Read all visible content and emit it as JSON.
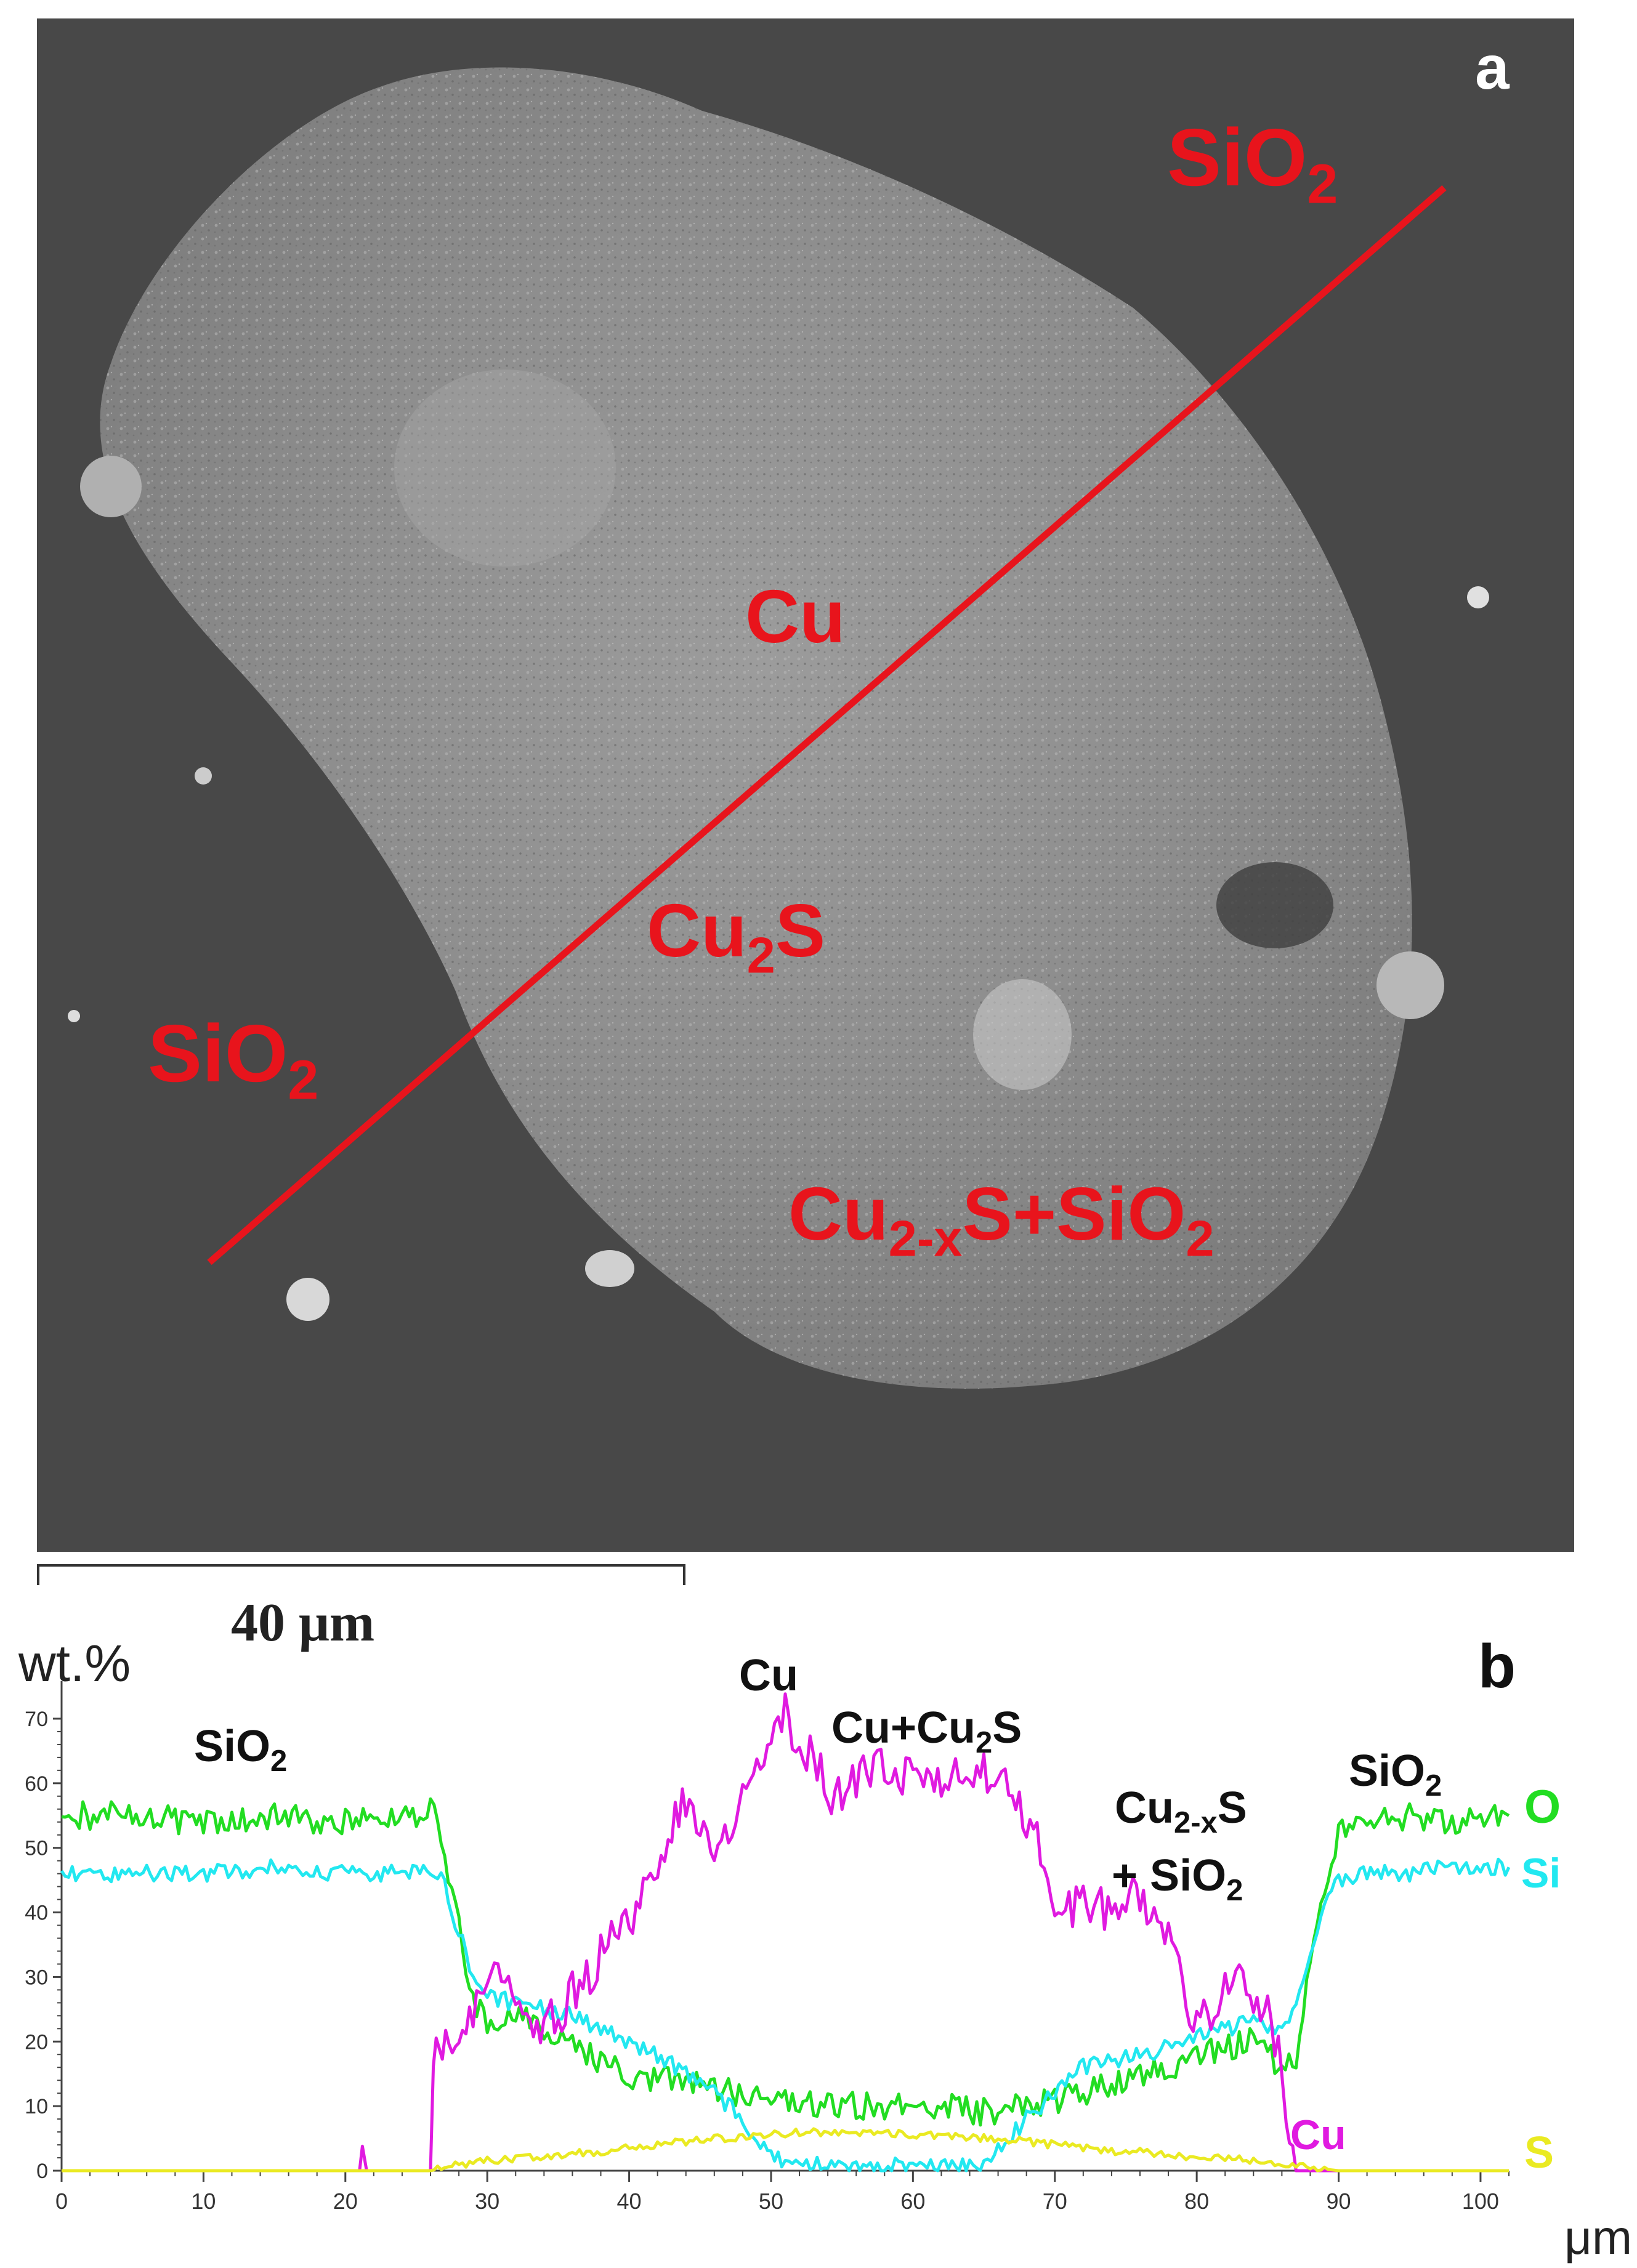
{
  "panel_a": {
    "letter": "a",
    "labels": {
      "sio2_top": "SiO",
      "sio2_top_sub": "2",
      "cu": "Cu",
      "cu2s": "Cu",
      "cu2s_sub": "2",
      "cu2s_tail": "S",
      "sio2_left": "SiO",
      "sio2_left_sub": "2",
      "mix_a": "Cu",
      "mix_a_sub": "2-x",
      "mix_a_mid": "S+SiO",
      "mix_a_sub2": "2"
    },
    "colors": {
      "label": "#e8141c",
      "line": "#e8141c",
      "background": "#484848",
      "particle": "#9a9a9a"
    },
    "scale_bar": "40 μm"
  },
  "chart_data": {
    "type": "line",
    "panel_letter": "b",
    "ylabel": "wt.%",
    "xlabel": "μm",
    "xlim": [
      0,
      102
    ],
    "ylim": [
      0,
      72
    ],
    "x_ticks": [
      "0",
      "10",
      "20",
      "30",
      "40",
      "50",
      "60",
      "70",
      "80",
      "90",
      "100"
    ],
    "y_ticks": [
      "0",
      "10",
      "20",
      "30",
      "40",
      "50",
      "60",
      "70"
    ],
    "grid": false,
    "series": [
      {
        "name": "O",
        "color": "#22dd22",
        "points": [
          [
            0,
            55
          ],
          [
            5,
            55
          ],
          [
            10,
            54
          ],
          [
            15,
            55
          ],
          [
            20,
            54
          ],
          [
            25,
            55
          ],
          [
            26.5,
            56
          ],
          [
            27,
            49
          ],
          [
            28,
            38
          ],
          [
            29,
            26
          ],
          [
            30,
            23
          ],
          [
            32,
            24
          ],
          [
            34,
            22
          ],
          [
            36,
            20
          ],
          [
            38,
            17
          ],
          [
            40,
            15
          ],
          [
            42,
            14
          ],
          [
            45,
            13
          ],
          [
            48,
            12
          ],
          [
            50,
            11
          ],
          [
            53,
            10
          ],
          [
            55,
            10
          ],
          [
            58,
            10
          ],
          [
            60,
            11
          ],
          [
            62,
            10
          ],
          [
            65,
            9
          ],
          [
            67,
            10
          ],
          [
            70,
            11
          ],
          [
            72,
            12
          ],
          [
            75,
            14
          ],
          [
            78,
            16
          ],
          [
            80,
            18
          ],
          [
            82,
            19
          ],
          [
            84,
            20
          ],
          [
            85,
            18
          ],
          [
            86,
            15
          ],
          [
            87,
            18
          ],
          [
            88,
            32
          ],
          [
            89,
            44
          ],
          [
            90,
            52
          ],
          [
            92,
            54
          ],
          [
            95,
            55
          ],
          [
            98,
            54
          ],
          [
            102,
            55
          ]
        ]
      },
      {
        "name": "Si",
        "color": "#22e8f0",
        "points": [
          [
            0,
            46
          ],
          [
            5,
            46
          ],
          [
            10,
            46
          ],
          [
            15,
            47
          ],
          [
            20,
            46
          ],
          [
            25,
            46
          ],
          [
            26.5,
            46
          ],
          [
            27,
            44
          ],
          [
            28,
            37
          ],
          [
            29,
            30
          ],
          [
            30,
            27
          ],
          [
            32,
            26
          ],
          [
            34,
            25
          ],
          [
            36,
            24
          ],
          [
            38,
            22
          ],
          [
            40,
            20
          ],
          [
            42,
            18
          ],
          [
            44,
            15
          ],
          [
            46,
            12
          ],
          [
            48,
            8
          ],
          [
            49,
            5
          ],
          [
            50,
            2
          ],
          [
            52,
            1
          ],
          [
            55,
            0.5
          ],
          [
            58,
            0.5
          ],
          [
            60,
            1
          ],
          [
            62,
            0.5
          ],
          [
            65,
            1
          ],
          [
            66,
            3
          ],
          [
            68,
            8
          ],
          [
            70,
            12
          ],
          [
            72,
            16
          ],
          [
            74,
            17
          ],
          [
            76,
            18
          ],
          [
            78,
            19
          ],
          [
            80,
            21
          ],
          [
            82,
            22
          ],
          [
            84,
            23
          ],
          [
            86,
            22
          ],
          [
            87,
            25
          ],
          [
            88,
            33
          ],
          [
            89,
            42
          ],
          [
            90,
            45
          ],
          [
            92,
            46
          ],
          [
            95,
            46
          ],
          [
            98,
            47
          ],
          [
            102,
            47
          ]
        ]
      },
      {
        "name": "Cu",
        "color": "#e01ae0",
        "points": [
          [
            0,
            0
          ],
          [
            20,
            0
          ],
          [
            21,
            0
          ],
          [
            21.2,
            3
          ],
          [
            21.5,
            0
          ],
          [
            26,
            0
          ],
          [
            26.2,
            15
          ],
          [
            26.6,
            20
          ],
          [
            28,
            22
          ],
          [
            30,
            28
          ],
          [
            31,
            32
          ],
          [
            32,
            26
          ],
          [
            33,
            24
          ],
          [
            34,
            23
          ],
          [
            35,
            24
          ],
          [
            36,
            28
          ],
          [
            37,
            30
          ],
          [
            38,
            33
          ],
          [
            39,
            36
          ],
          [
            40,
            38
          ],
          [
            41,
            42
          ],
          [
            42,
            48
          ],
          [
            43,
            53
          ],
          [
            44,
            57
          ],
          [
            45,
            54
          ],
          [
            46,
            50
          ],
          [
            47,
            52
          ],
          [
            48,
            58
          ],
          [
            49,
            62
          ],
          [
            50,
            68
          ],
          [
            51,
            71
          ],
          [
            52,
            66
          ],
          [
            53,
            65
          ],
          [
            54,
            59
          ],
          [
            55,
            58
          ],
          [
            56,
            60
          ],
          [
            57,
            63
          ],
          [
            58,
            62
          ],
          [
            59,
            60
          ],
          [
            60,
            63
          ],
          [
            61,
            62
          ],
          [
            62,
            61
          ],
          [
            63,
            64
          ],
          [
            64,
            63
          ],
          [
            65,
            62
          ],
          [
            66,
            60
          ],
          [
            67,
            58
          ],
          [
            68,
            55
          ],
          [
            69,
            50
          ],
          [
            70,
            42
          ],
          [
            71,
            40
          ],
          [
            72,
            42
          ],
          [
            73,
            41
          ],
          [
            74,
            40
          ],
          [
            75,
            43
          ],
          [
            76,
            41
          ],
          [
            77,
            40
          ],
          [
            78,
            35
          ],
          [
            79,
            28
          ],
          [
            80,
            24
          ],
          [
            81,
            25
          ],
          [
            82,
            28
          ],
          [
            83,
            32
          ],
          [
            84,
            26
          ],
          [
            85,
            24
          ],
          [
            86,
            18
          ],
          [
            86.3,
            4
          ],
          [
            87,
            0
          ],
          [
            102,
            0
          ]
        ]
      },
      {
        "name": "S",
        "color": "#eaea22",
        "points": [
          [
            0,
            0
          ],
          [
            26,
            0
          ],
          [
            27,
            0.5
          ],
          [
            28,
            1
          ],
          [
            30,
            1.5
          ],
          [
            32,
            2
          ],
          [
            35,
            2.5
          ],
          [
            38,
            3
          ],
          [
            40,
            3.5
          ],
          [
            42,
            4
          ],
          [
            44,
            4.5
          ],
          [
            46,
            5
          ],
          [
            48,
            5
          ],
          [
            50,
            5.5
          ],
          [
            52,
            6
          ],
          [
            54,
            6
          ],
          [
            56,
            6
          ],
          [
            58,
            6
          ],
          [
            60,
            5.5
          ],
          [
            62,
            5.5
          ],
          [
            64,
            5
          ],
          [
            66,
            5
          ],
          [
            68,
            4.5
          ],
          [
            70,
            4
          ],
          [
            72,
            3.5
          ],
          [
            74,
            3
          ],
          [
            76,
            3
          ],
          [
            78,
            2.5
          ],
          [
            80,
            2
          ],
          [
            82,
            2
          ],
          [
            84,
            1.5
          ],
          [
            86,
            1
          ],
          [
            88,
            0.5
          ],
          [
            90,
            0
          ],
          [
            102,
            0
          ]
        ]
      }
    ],
    "annotations": {
      "sio2_left": "SiO",
      "sio2_left_sub": "2",
      "cu_top": "Cu",
      "cu_cu2s": "Cu+Cu",
      "cu_cu2s_sub": "2",
      "cu_cu2s_tail": "S",
      "mix_line1": "Cu",
      "mix_line1_sub": "2-x",
      "mix_line1_tail": "S",
      "mix_line2": "+ SiO",
      "mix_line2_sub": "2",
      "sio2_right": "SiO",
      "sio2_right_sub": "2",
      "legend_o": "O",
      "legend_si": "Si",
      "legend_cu": "Cu",
      "legend_s": "S"
    }
  }
}
